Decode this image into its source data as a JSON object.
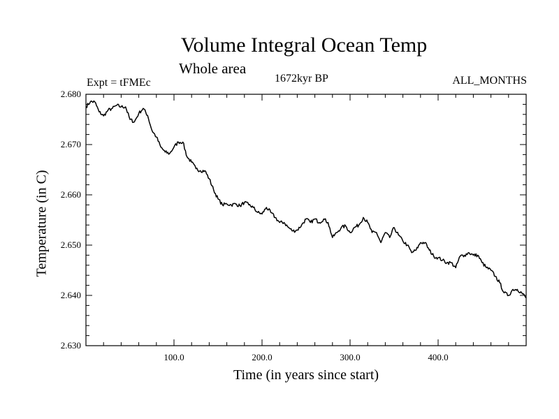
{
  "chart_data": {
    "type": "line",
    "title": "Volume Integral Ocean Temp",
    "subtitle": "Whole area",
    "annotation_left": "Expt = tFMEc",
    "annotation_center": "1672kyr BP",
    "annotation_right": "ALL_MONTHS",
    "xlabel": "Time (in years since start)",
    "ylabel": "Temperature (in C)",
    "xlim": [
      0,
      500
    ],
    "ylim": [
      2.63,
      2.68
    ],
    "x_ticks": [
      100,
      200,
      300,
      400
    ],
    "x_tick_labels": [
      "100.0",
      "200.0",
      "300.0",
      "400.0"
    ],
    "y_ticks": [
      2.63,
      2.64,
      2.65,
      2.66,
      2.67,
      2.68
    ],
    "y_tick_labels": [
      "2.630",
      "2.640",
      "2.650",
      "2.660",
      "2.670",
      "2.680"
    ],
    "grid": false,
    "series": [
      {
        "name": "Volume Integral Ocean Temp",
        "x": [
          0,
          5,
          10,
          15,
          20,
          25,
          30,
          35,
          40,
          45,
          50,
          55,
          60,
          65,
          70,
          75,
          80,
          85,
          90,
          95,
          100,
          105,
          110,
          115,
          120,
          125,
          130,
          135,
          140,
          145,
          150,
          155,
          160,
          165,
          170,
          175,
          180,
          185,
          190,
          195,
          200,
          205,
          210,
          215,
          220,
          225,
          230,
          235,
          240,
          245,
          250,
          255,
          260,
          265,
          270,
          275,
          280,
          285,
          290,
          295,
          300,
          305,
          310,
          315,
          320,
          325,
          330,
          335,
          340,
          345,
          350,
          355,
          360,
          365,
          370,
          375,
          380,
          385,
          390,
          395,
          400,
          405,
          410,
          415,
          420,
          425,
          430,
          435,
          440,
          445,
          450,
          455,
          460,
          465,
          470,
          475,
          480,
          485,
          490,
          495,
          500
        ],
        "values": [
          2.6775,
          2.6785,
          2.6785,
          2.6765,
          2.6757,
          2.6768,
          2.6772,
          2.6778,
          2.6775,
          2.6775,
          2.675,
          2.6745,
          2.6762,
          2.6772,
          2.6758,
          2.6728,
          2.6715,
          2.6695,
          2.6685,
          2.6682,
          2.6695,
          2.6705,
          2.6705,
          2.6675,
          2.6665,
          2.6652,
          2.6648,
          2.6648,
          2.6632,
          2.661,
          2.6592,
          2.658,
          2.6582,
          2.658,
          2.6582,
          2.6578,
          2.6585,
          2.658,
          2.6575,
          2.6565,
          2.6562,
          2.6575,
          2.6565,
          2.6555,
          2.6545,
          2.6545,
          2.6535,
          2.6528,
          2.653,
          2.654,
          2.6552,
          2.6545,
          2.6552,
          2.6545,
          2.6552,
          2.6545,
          2.6515,
          2.6525,
          2.6535,
          2.6538,
          2.6525,
          2.6535,
          2.654,
          2.6555,
          2.6545,
          2.6525,
          2.6525,
          2.6505,
          2.6525,
          2.6515,
          2.6535,
          2.652,
          2.6508,
          2.65,
          2.6485,
          2.649,
          2.6505,
          2.6505,
          2.649,
          2.6478,
          2.6475,
          2.647,
          2.6465,
          2.6465,
          2.6455,
          2.6478,
          2.648,
          2.6485,
          2.648,
          2.648,
          2.6465,
          2.6455,
          2.645,
          2.6438,
          2.6425,
          2.6405,
          2.64,
          2.6412,
          2.6412,
          2.6405,
          2.6395
        ]
      }
    ]
  }
}
